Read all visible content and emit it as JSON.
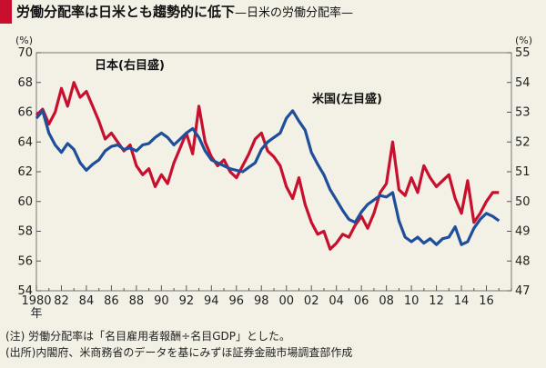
{
  "header": {
    "title": "労働分配率は日米とも趨勢的に低下",
    "subtitle": "—日米の労働分配率—"
  },
  "notes": {
    "note": "(注) 労働分配率は「名目雇用者報酬÷名目GDP」とした。",
    "source": "(出所)内閣府、米商務省のデータを基にみずほ証券金融市場調査部作成"
  },
  "colors": {
    "us": "#1f4e9a",
    "japan": "#c8102e",
    "title_marker": "#c8102e",
    "background": "#f3f0e6"
  },
  "chart_data": {
    "type": "line",
    "left_axis": {
      "unit": "(%)",
      "min": 54,
      "max": 70,
      "ticks": [
        54,
        56,
        58,
        60,
        62,
        64,
        66,
        68,
        70
      ]
    },
    "right_axis": {
      "unit": "(%)",
      "min": 47,
      "max": 55,
      "ticks": [
        47,
        48,
        49,
        50,
        51,
        52,
        53,
        54,
        55
      ]
    },
    "x_axis": {
      "min": 1980,
      "max": 2018,
      "tick_labels": [
        "1980",
        "82",
        "84",
        "86",
        "88",
        "90",
        "92",
        "94",
        "96",
        "98",
        "00",
        "02",
        "04",
        "06",
        "08",
        "10",
        "12",
        "14",
        "16"
      ],
      "tick_values": [
        1980,
        1982,
        1984,
        1986,
        1988,
        1990,
        1992,
        1994,
        1996,
        1998,
        2000,
        2002,
        2004,
        2006,
        2008,
        2010,
        2012,
        2014,
        2016
      ],
      "year_label": "年"
    },
    "series": [
      {
        "name": "米国(左目盛)",
        "axis": "left",
        "x": [
          1980,
          1980.5,
          1981,
          1981.5,
          1982,
          1982.5,
          1983,
          1983.5,
          1984,
          1984.5,
          1985,
          1985.5,
          1986,
          1986.5,
          1987,
          1987.5,
          1988,
          1988.5,
          1989,
          1989.5,
          1990,
          1990.5,
          1991,
          1991.5,
          1992,
          1992.5,
          1993,
          1993.5,
          1994,
          1994.5,
          1995,
          1995.5,
          1996,
          1996.5,
          1997,
          1997.5,
          1998,
          1998.5,
          1999,
          1999.5,
          2000,
          2000.5,
          2001,
          2001.5,
          2002,
          2002.5,
          2003,
          2003.5,
          2004,
          2004.5,
          2005,
          2005.5,
          2006,
          2006.5,
          2007,
          2007.5,
          2008,
          2008.5,
          2009,
          2009.5,
          2010,
          2010.5,
          2011,
          2011.5,
          2012,
          2012.5,
          2013,
          2013.5,
          2014,
          2014.5,
          2015,
          2015.5,
          2016,
          2016.5,
          2017
        ],
        "values": [
          65.6,
          66.1,
          64.6,
          63.8,
          63.3,
          63.9,
          63.5,
          62.6,
          62.1,
          62.5,
          62.8,
          63.4,
          63.7,
          63.8,
          63.5,
          63.6,
          63.4,
          63.8,
          63.9,
          64.3,
          64.6,
          64.3,
          63.8,
          64.2,
          64.6,
          64.9,
          64.3,
          63.4,
          62.8,
          62.6,
          62.4,
          62.2,
          62.1,
          62.0,
          62.3,
          62.6,
          63.5,
          64.0,
          64.3,
          64.6,
          65.6,
          66.1,
          65.4,
          64.8,
          63.3,
          62.5,
          61.8,
          60.8,
          60.1,
          59.4,
          58.8,
          58.6,
          59.3,
          59.8,
          60.1,
          60.4,
          60.3,
          60.6,
          58.7,
          57.6,
          57.3,
          57.6,
          57.2,
          57.5,
          57.1,
          57.5,
          57.6,
          58.3,
          57.1,
          57.3,
          58.2,
          58.8,
          59.2,
          59.0,
          58.7
        ]
      },
      {
        "name": "日本(右目盛)",
        "axis": "right",
        "x": [
          1980,
          1980.5,
          1981,
          1981.5,
          1982,
          1982.5,
          1983,
          1983.5,
          1984,
          1984.5,
          1985,
          1985.5,
          1986,
          1986.5,
          1987,
          1987.5,
          1988,
          1988.5,
          1989,
          1989.5,
          1990,
          1990.5,
          1991,
          1991.5,
          1992,
          1992.5,
          1993,
          1993.5,
          1994,
          1994.5,
          1995,
          1995.5,
          1996,
          1996.5,
          1997,
          1997.5,
          1998,
          1998.5,
          1999,
          1999.5,
          2000,
          2000.5,
          2001,
          2001.5,
          2002,
          2002.5,
          2003,
          2003.5,
          2004,
          2004.5,
          2005,
          2005.5,
          2006,
          2006.5,
          2007,
          2007.5,
          2008,
          2008.5,
          2009,
          2009.5,
          2010,
          2010.5,
          2011,
          2011.5,
          2012,
          2012.5,
          2013,
          2013.5,
          2014,
          2014.5,
          2015,
          2015.5,
          2016,
          2016.5,
          2017
        ],
        "values": [
          52.9,
          53.1,
          52.6,
          53.0,
          53.8,
          53.2,
          54.0,
          53.5,
          53.7,
          53.2,
          52.7,
          52.1,
          52.3,
          52.0,
          51.7,
          51.9,
          51.2,
          50.9,
          51.1,
          50.5,
          50.9,
          50.6,
          51.3,
          51.8,
          52.3,
          51.6,
          53.2,
          52.0,
          51.5,
          51.2,
          51.4,
          51.0,
          50.8,
          51.2,
          51.6,
          52.1,
          52.3,
          51.7,
          51.5,
          51.2,
          50.5,
          50.1,
          50.8,
          49.9,
          49.3,
          48.9,
          49.0,
          48.4,
          48.6,
          48.9,
          48.8,
          49.2,
          49.5,
          49.1,
          49.6,
          50.3,
          50.6,
          52.0,
          50.4,
          50.2,
          50.8,
          50.3,
          51.2,
          50.8,
          50.5,
          50.7,
          50.9,
          50.1,
          49.6,
          50.7,
          49.3,
          49.6,
          50.0,
          50.3,
          50.3
        ]
      }
    ],
    "annotations": [
      "日本(右目盛)",
      "米国(左目盛)"
    ],
    "grid": false,
    "legend": "inline labels"
  }
}
